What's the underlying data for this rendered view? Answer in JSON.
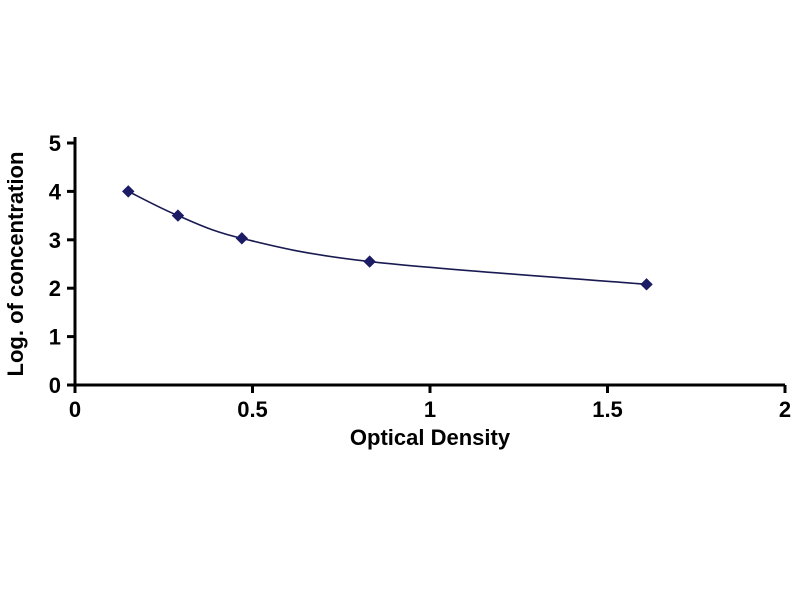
{
  "chart_data": {
    "type": "scatter",
    "title": "",
    "xlabel": "Optical Density",
    "ylabel": "Log. of concentration",
    "x": [
      0.15,
      0.29,
      0.47,
      0.83,
      1.61
    ],
    "y": [
      4.0,
      3.5,
      3.03,
      2.55,
      2.08
    ],
    "xlim": [
      0,
      2
    ],
    "ylim": [
      0,
      5
    ],
    "xticks": [
      0,
      0.5,
      1,
      1.5,
      2
    ],
    "xtick_labels": [
      "0",
      "0.5",
      "1",
      "1.5",
      "2"
    ],
    "yticks": [
      0,
      1,
      2,
      3,
      4,
      5
    ],
    "ytick_labels": [
      "0",
      "1",
      "2",
      "3",
      "4",
      "5"
    ],
    "grid": false,
    "legend": "none",
    "marker": "diamond",
    "colors": {
      "axis": "#000000",
      "line": "#1a1a52",
      "marker": "#1c1c66",
      "background": "#ffffff",
      "text": "#000000"
    }
  }
}
